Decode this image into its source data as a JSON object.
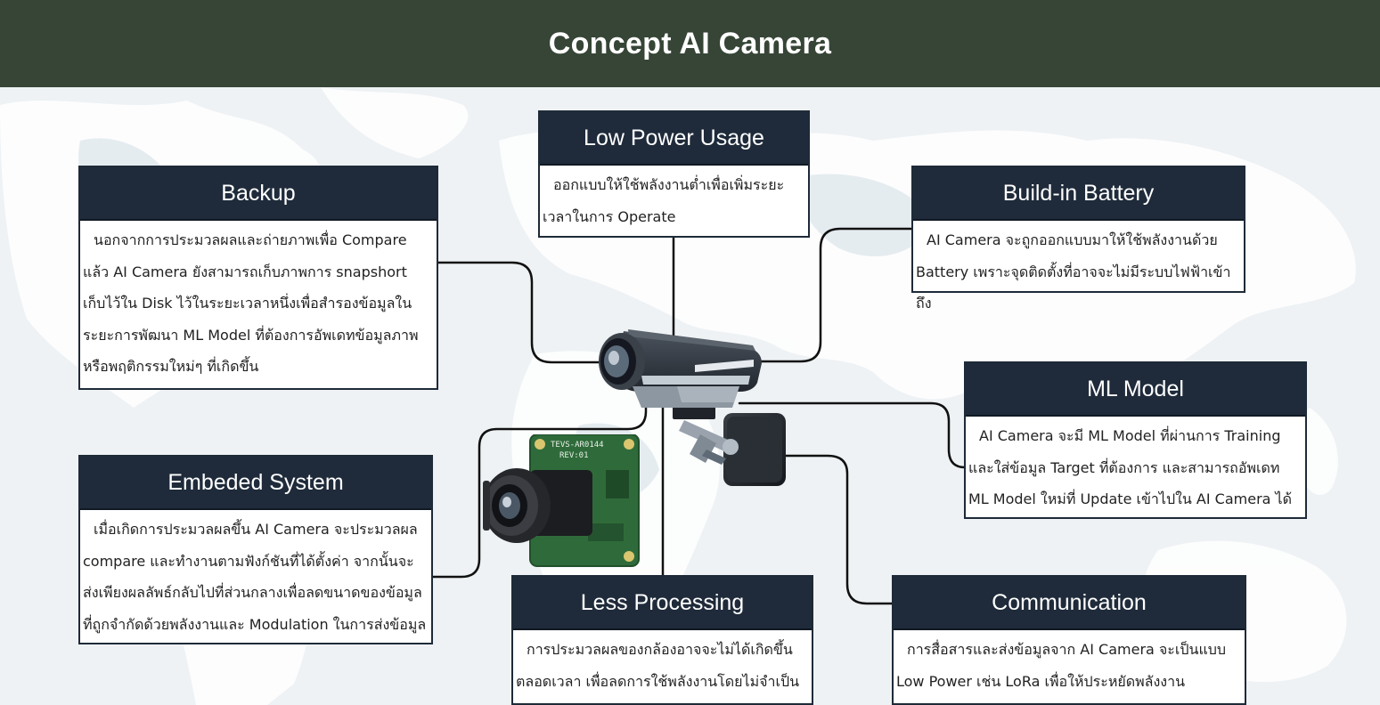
{
  "header": {
    "title": "Concept AI Camera"
  },
  "colors": {
    "header_bg": "#364536",
    "box_header_bg": "#1f2b3a",
    "box_border": "#1e2a38",
    "connector": "#111111"
  },
  "boxes": {
    "low_power": {
      "title": "Low Power Usage",
      "text": "ออกแบบให้ใช้พลังงานต่ำเพื่อเพิ่มระยะเวลาในการ Operate"
    },
    "backup": {
      "title": "Backup",
      "text": "นอกจากการประมวลผลและถ่ายภาพเพื่อ Compare แล้ว AI Camera ยังสามารถเก็บภาพการ snapshort เก็บไว้ใน Disk ไว้ในระยะเวลาหนึ่งเพื่อสำรองข้อมูลในระยะการพัฒนา ML Model ที่ต้องการอัพเดทข้อมูลภาพหรือพฤติกรรมใหม่ๆ ที่เกิดขึ้น"
    },
    "battery": {
      "title": "Build-in Battery",
      "text": "AI Camera จะถูกออกแบบมาให้ใช้พลังงานด้วย Battery เพราะจุดติดตั้งที่อาจจะไม่มีระบบไฟฟ้าเข้าถึง"
    },
    "ml_model": {
      "title": "ML Model",
      "text": "AI Camera จะมี ML Model ที่ผ่านการ Training และใส่ข้อมูล Target ที่ต้องการ และสามารถอัพเดท ML Model ใหม่ที่ Update เข้าไปใน AI Camera ได้"
    },
    "embedded": {
      "title": "Embeded System",
      "text": "เมื่อเกิดการประมวลผลขึ้น AI Camera จะประมวลผล compare และทำงานตามฟังก์ชันที่ได้ตั้งค่า จากนั้นจะส่งเพียงผลลัพธ์กลับไปที่ส่วนกลางเพื่อลดขนาดของข้อมูลที่ถูกจำกัดด้วยพลังงานและ Modulation ในการส่งข้อมูล"
    },
    "less_processing": {
      "title": "Less Processing",
      "text": "การประมวลผลของกล้องอาจจะไม่ได้เกิดขึ้นตลอดเวลา เพื่อลดการใช้พลังงานโดยไม่จำเป็น"
    },
    "communication": {
      "title": "Communication",
      "text": "การสื่อสารและส่งข้อมูลจาก AI Camera จะเป็นแบบ Low Power เช่น LoRa เพื่อให้ประหยัดพลังงาน"
    }
  },
  "board": {
    "silkscreen_1": "TEVS-AR0144",
    "silkscreen_2": "REV:01"
  },
  "icons": {
    "main": "security-camera-icon",
    "board": "camera-module-board-icon"
  }
}
